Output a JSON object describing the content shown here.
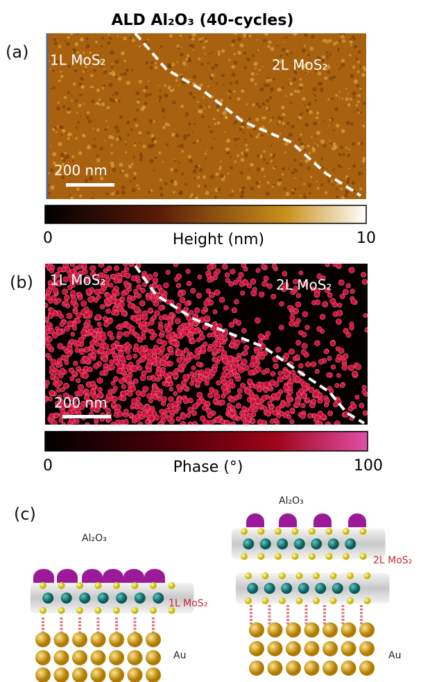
{
  "title": "ALD Al₂O₃ (40-cycles)",
  "panel_a": {
    "label": "(a)",
    "left_region": "1L MoS₂",
    "right_region": "2L MoS₂",
    "scale_bar": "200 nm",
    "colorbar": {
      "min": 0,
      "title": "Height (nm)",
      "max": 10
    }
  },
  "panel_b": {
    "label": "(b)",
    "left_region": "1L MoS₂",
    "right_region": "2L MoS₂",
    "scale_bar": "200 nm",
    "colorbar": {
      "min": 0,
      "title": "Phase (°)",
      "max": 100
    }
  },
  "panel_c": {
    "label": "(c)",
    "left": {
      "coating": "Al₂O₃",
      "layer": "1L MoS₂",
      "substrate": "Au"
    },
    "right": {
      "coating": "Al₂O₃",
      "layer": "2L MoS₂",
      "substrate": "Au"
    }
  }
}
